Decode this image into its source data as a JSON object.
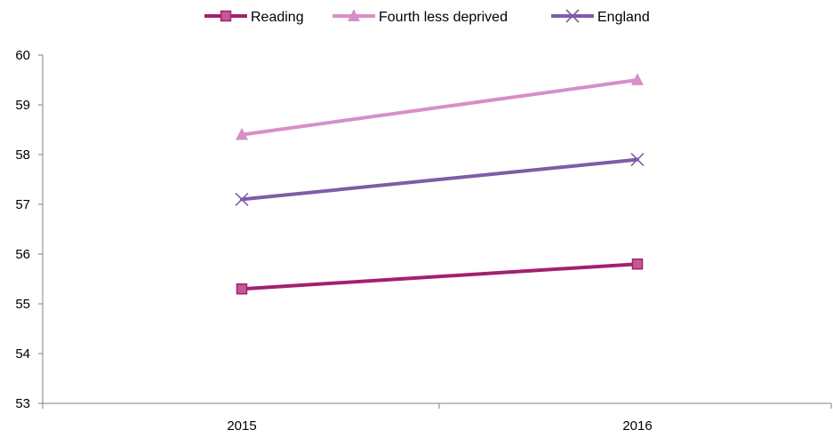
{
  "chart_data": {
    "type": "line",
    "title": "",
    "xlabel": "",
    "ylabel": "",
    "categories": [
      "2015",
      "2016"
    ],
    "ylim": [
      53,
      60
    ],
    "yticks": [
      53,
      54,
      55,
      56,
      57,
      58,
      59,
      60
    ],
    "grid": false,
    "legend_position": "top",
    "series": [
      {
        "name": "Reading",
        "values": [
          55.3,
          55.8
        ],
        "color": "#A3206E",
        "marker": "square"
      },
      {
        "name": "Fourth less deprived",
        "values": [
          58.4,
          59.5
        ],
        "color": "#D68FC8",
        "marker": "triangle"
      },
      {
        "name": "England",
        "values": [
          57.1,
          57.9
        ],
        "color": "#7E5DA6",
        "marker": "x"
      }
    ]
  }
}
